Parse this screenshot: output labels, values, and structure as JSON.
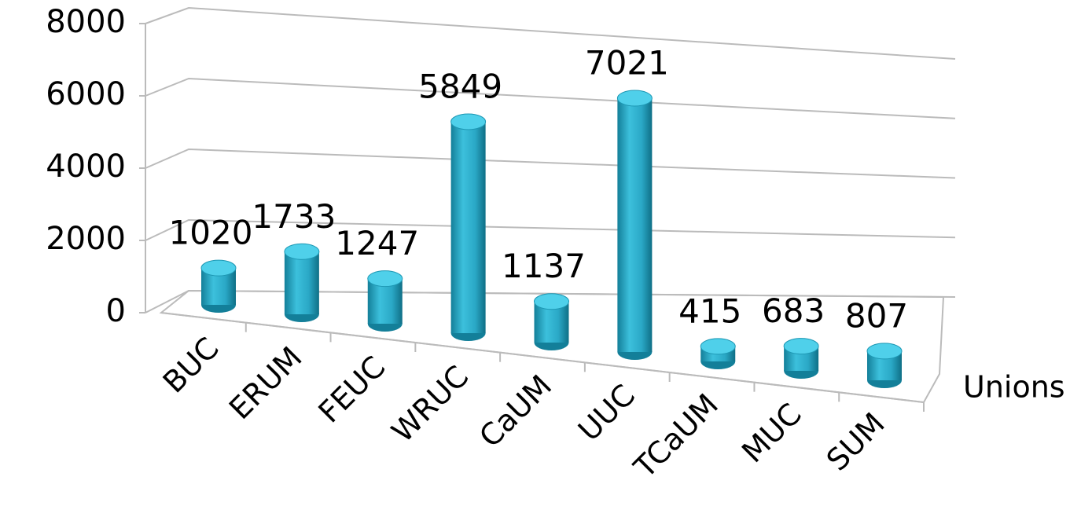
{
  "chart_data": {
    "type": "bar3d",
    "categories": [
      "BUC",
      "ERUM",
      "FEUC",
      "WRUC",
      "CaUM",
      "UUC",
      "TCaUM",
      "MUC",
      "SUM"
    ],
    "values": [
      1020,
      1733,
      1247,
      5849,
      1137,
      7021,
      415,
      683,
      807
    ],
    "color": "#29a9c6",
    "xlabel": "Unions",
    "ylim": [
      0,
      8000
    ],
    "yticks": [
      0,
      2000,
      4000,
      6000,
      8000
    ],
    "grid": true
  }
}
